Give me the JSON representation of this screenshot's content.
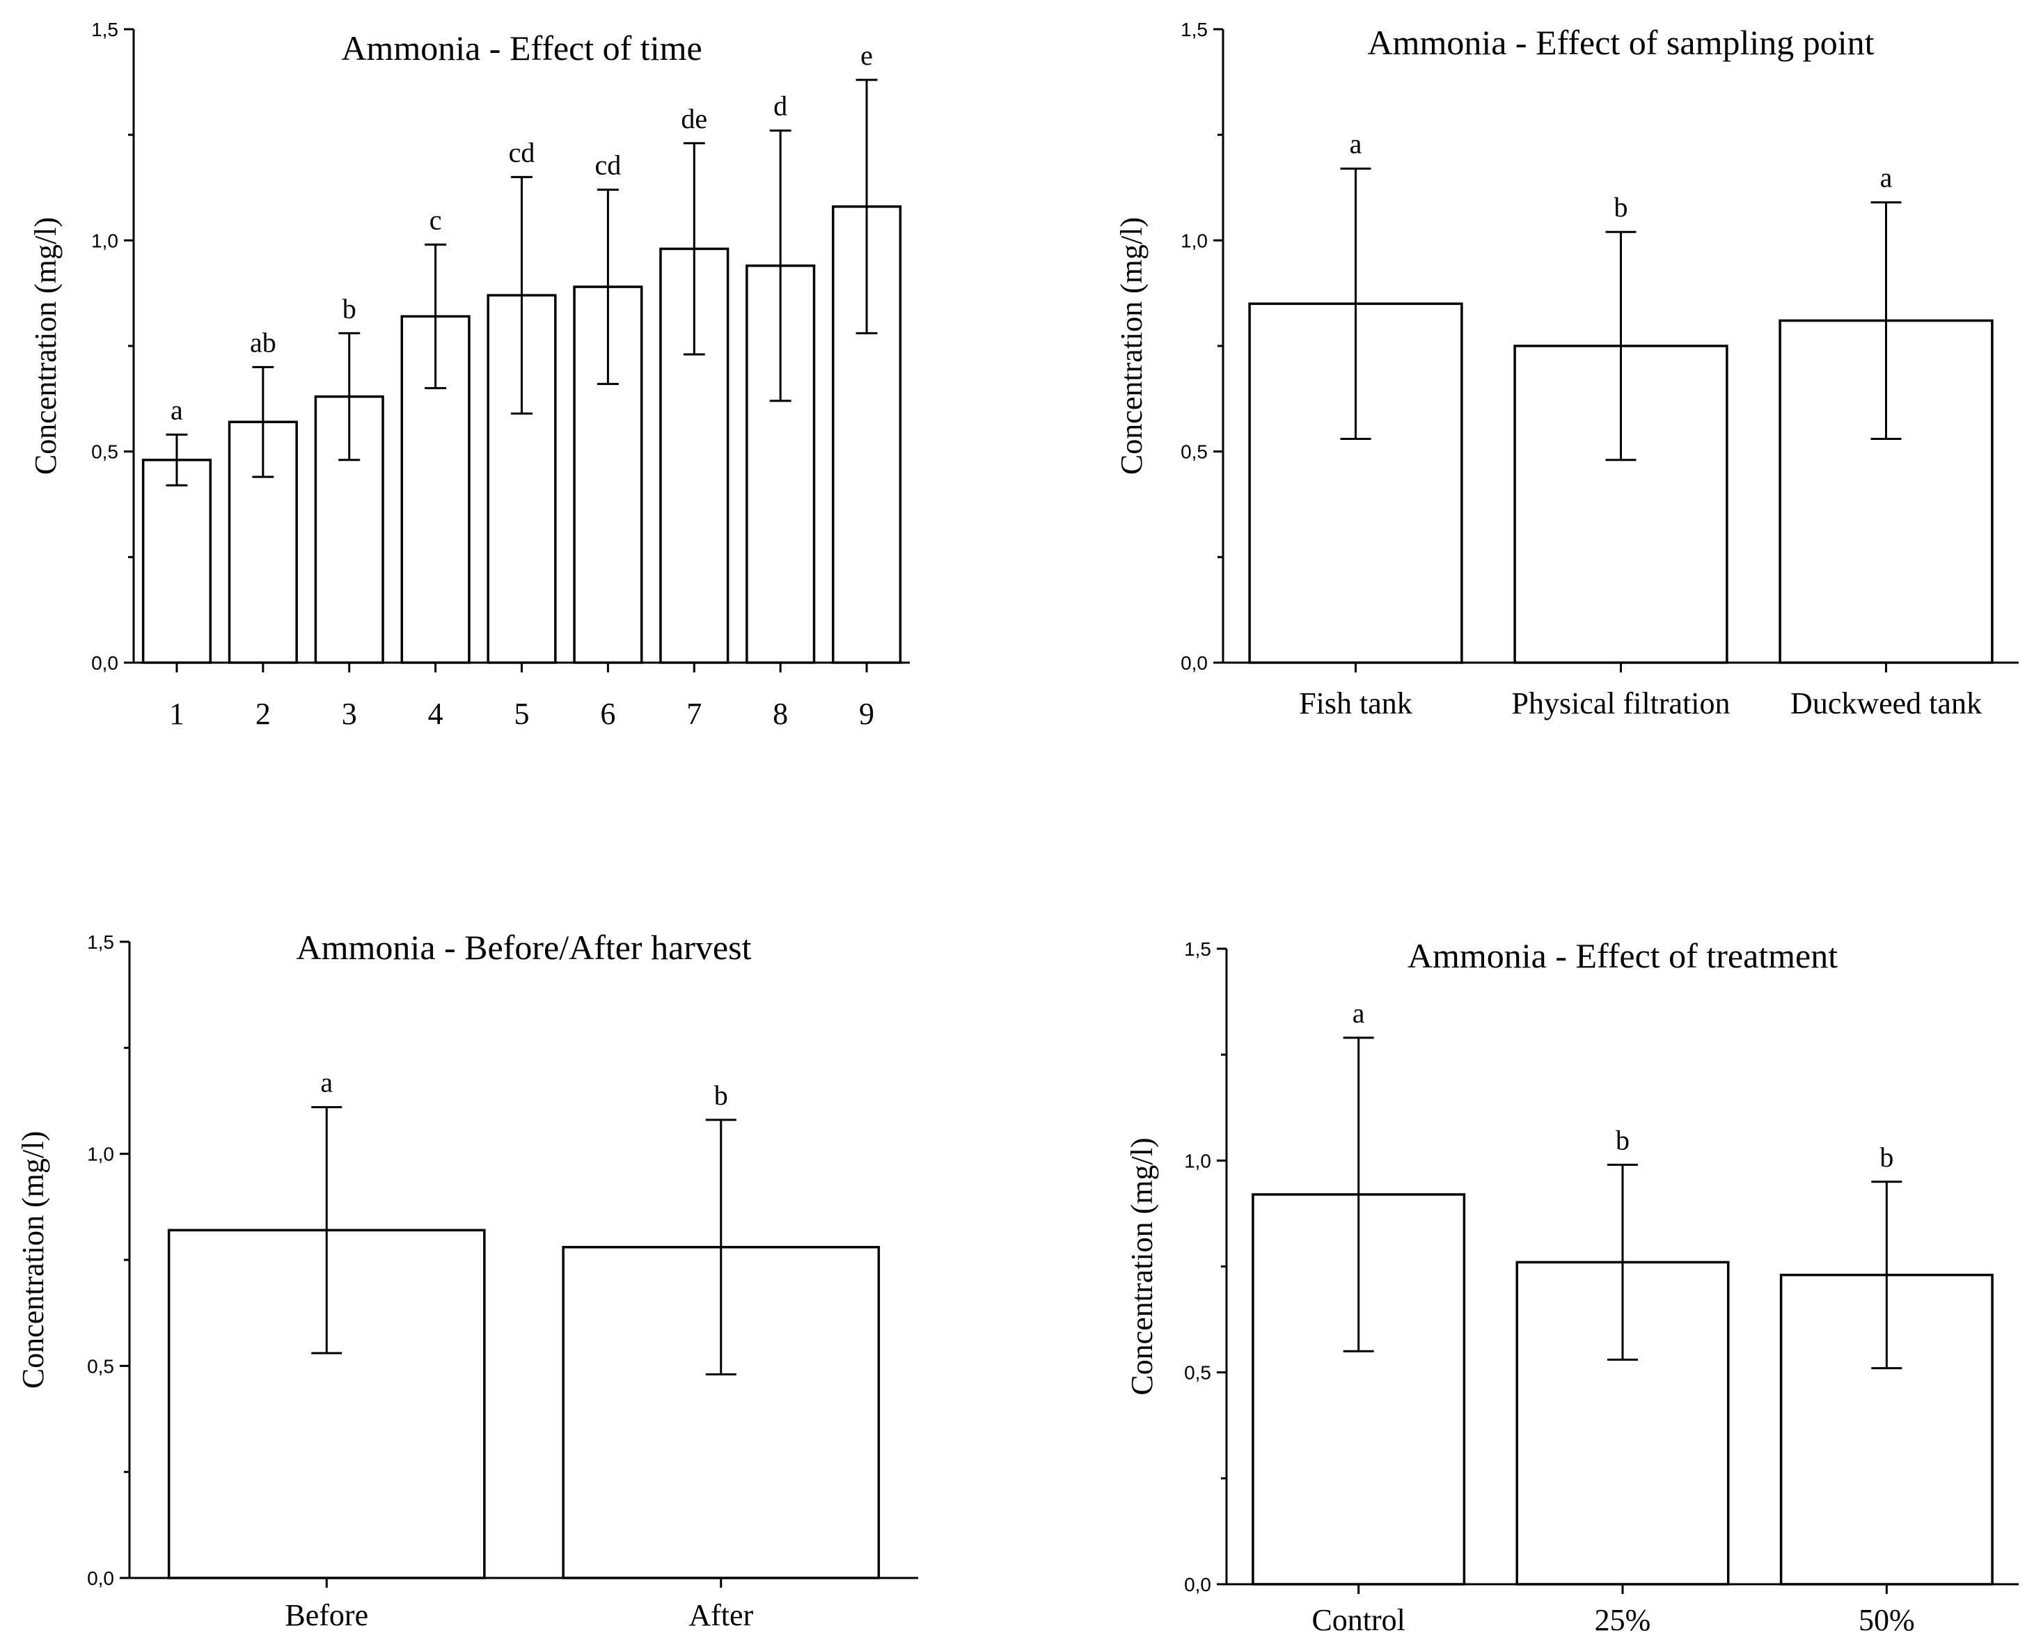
{
  "chart_data": [
    {
      "type": "bar",
      "title": "Ammonia - Effect of time",
      "xlabel": "",
      "ylabel": "Concentration (mg/l)",
      "ylim": [
        0,
        1.5
      ],
      "yticks": [
        "0,0",
        "0,5",
        "1,0",
        "1,5"
      ],
      "yticks_values": [
        0,
        0.5,
        1.0,
        1.5
      ],
      "categories": [
        "1",
        "2",
        "3",
        "4",
        "5",
        "6",
        "7",
        "8",
        "9"
      ],
      "values": [
        0.48,
        0.57,
        0.63,
        0.82,
        0.87,
        0.89,
        0.98,
        0.94,
        1.08
      ],
      "errors": [
        0.06,
        0.13,
        0.15,
        0.17,
        0.28,
        0.23,
        0.25,
        0.32,
        0.3
      ],
      "significance": [
        "a",
        "ab",
        "b",
        "c",
        "cd",
        "cd",
        "de",
        "d",
        "e"
      ]
    },
    {
      "type": "bar",
      "title": "Ammonia - Effect of sampling point",
      "xlabel": "",
      "ylabel": "Concentration (mg/l)",
      "ylim": [
        0,
        1.5
      ],
      "yticks": [
        "0,0",
        "0,5",
        "1,0",
        "1,5"
      ],
      "yticks_values": [
        0,
        0.5,
        1.0,
        1.5
      ],
      "categories": [
        "Fish tank",
        "Physical filtration",
        "Duckweed tank"
      ],
      "values": [
        0.85,
        0.75,
        0.81
      ],
      "errors": [
        0.32,
        0.27,
        0.28
      ],
      "significance": [
        "a",
        "b",
        "a"
      ]
    },
    {
      "type": "bar",
      "title": "Ammonia - Before/After harvest",
      "xlabel": "",
      "ylabel": "Concentration (mg/l)",
      "ylim": [
        0,
        1.5
      ],
      "yticks": [
        "0,0",
        "0,5",
        "1,0",
        "1,5"
      ],
      "yticks_values": [
        0,
        0.5,
        1.0,
        1.5
      ],
      "categories": [
        "Before",
        "After"
      ],
      "values": [
        0.82,
        0.78
      ],
      "errors": [
        0.29,
        0.3
      ],
      "significance": [
        "a",
        "b"
      ]
    },
    {
      "type": "bar",
      "title": "Ammonia - Effect of treatment",
      "xlabel": "",
      "ylabel": "Concentration (mg/l)",
      "ylim": [
        0,
        1.5
      ],
      "yticks": [
        "0,0",
        "0,5",
        "1,0",
        "1,5"
      ],
      "yticks_values": [
        0,
        0.5,
        1.0,
        1.5
      ],
      "categories": [
        "Control",
        "25%",
        "50%"
      ],
      "values": [
        0.92,
        0.76,
        0.73
      ],
      "errors": [
        0.37,
        0.23,
        0.22
      ],
      "significance": [
        "a",
        "b",
        "b"
      ]
    }
  ]
}
